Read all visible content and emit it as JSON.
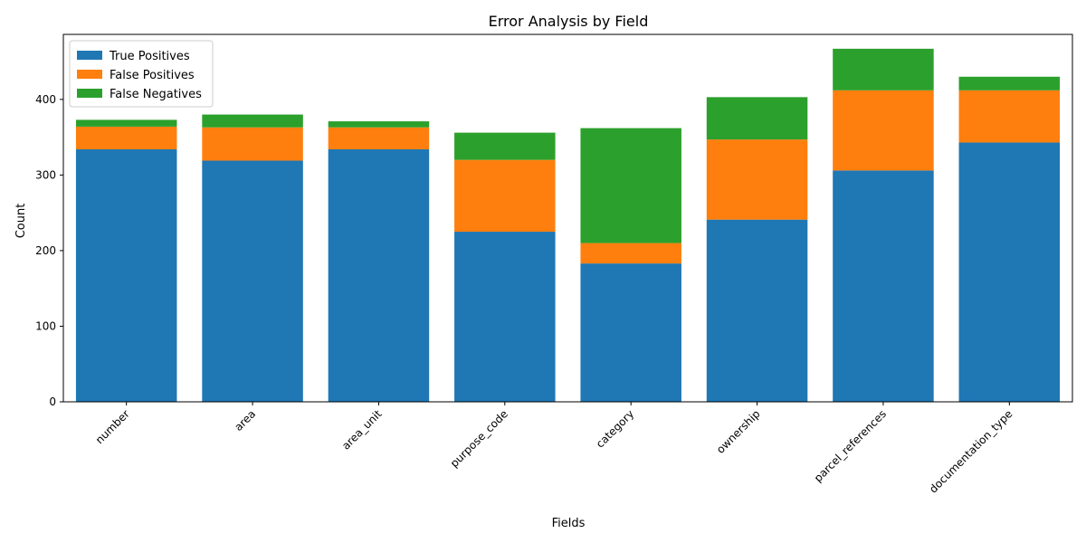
{
  "chart_data": {
    "type": "bar",
    "stacked": true,
    "title": "Error Analysis by Field",
    "xlabel": "Fields",
    "ylabel": "Count",
    "categories": [
      "number",
      "area",
      "area_unit",
      "purpose_code",
      "category",
      "ownership",
      "parcel_references",
      "documentation_type"
    ],
    "series": [
      {
        "name": "True Positives",
        "color": "#1f77b4",
        "values": [
          334,
          319,
          334,
          225,
          183,
          241,
          306,
          343
        ]
      },
      {
        "name": "False Positives",
        "color": "#ff7f0e",
        "values": [
          30,
          44,
          29,
          95,
          27,
          106,
          106,
          69
        ]
      },
      {
        "name": "False Negatives",
        "color": "#2ca02c",
        "values": [
          9,
          17,
          8,
          36,
          152,
          56,
          55,
          18
        ]
      }
    ],
    "ylim": [
      0,
      486
    ],
    "yticks": [
      0,
      100,
      200,
      300,
      400
    ],
    "grid": false,
    "legend_position": "top-left"
  }
}
